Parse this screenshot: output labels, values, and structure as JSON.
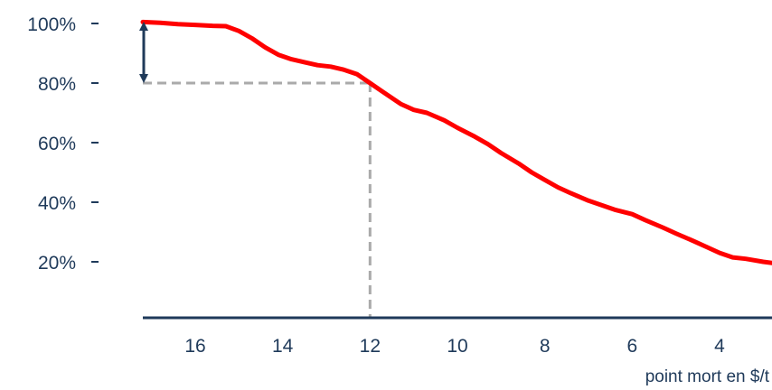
{
  "chart_data": {
    "type": "line",
    "title": "",
    "xlabel": "point mort en $/t",
    "ylabel": "",
    "x_reversed": true,
    "xlim": [
      17.2,
      2.8
    ],
    "ylim": [
      0,
      100
    ],
    "x_ticks": [
      16,
      14,
      12,
      10,
      8,
      6,
      4
    ],
    "y_ticks": [
      20,
      40,
      60,
      80,
      100
    ],
    "y_tick_labels": [
      "20%",
      "40%",
      "60%",
      "80%",
      "100%"
    ],
    "grid": false,
    "legend": "none",
    "series": [
      {
        "color": "#ff0000",
        "x": [
          17.2,
          16.8,
          16.4,
          16.0,
          15.6,
          15.3,
          15.0,
          14.7,
          14.4,
          14.1,
          13.8,
          13.5,
          13.2,
          12.9,
          12.6,
          12.3,
          12.0,
          11.7,
          11.3,
          11.0,
          10.7,
          10.3,
          10.0,
          9.6,
          9.3,
          9.0,
          8.6,
          8.3,
          8.0,
          7.7,
          7.4,
          7.0,
          6.7,
          6.4,
          6.0,
          5.7,
          5.3,
          5.0,
          4.6,
          4.3,
          4.0,
          3.7,
          3.4,
          3.0,
          2.8
        ],
        "y": [
          100.5,
          100.2,
          99.8,
          99.5,
          99.2,
          99.1,
          97.5,
          95.0,
          92.0,
          89.5,
          88.0,
          87.0,
          86.0,
          85.5,
          84.5,
          83.0,
          80.0,
          77.0,
          73.0,
          71.0,
          70.0,
          67.5,
          65.0,
          62.0,
          59.5,
          56.5,
          53.0,
          50.0,
          47.5,
          45.0,
          43.0,
          40.5,
          39.0,
          37.5,
          36.0,
          34.0,
          31.5,
          29.5,
          27.0,
          25.0,
          23.0,
          21.5,
          21.0,
          20.0,
          19.6
        ]
      }
    ],
    "reference": {
      "x": 12,
      "y": 80,
      "color": "#aaaaaa",
      "style": "dashed"
    },
    "annotation": {
      "type": "double-arrow",
      "x": 17.2,
      "from": 80,
      "to": 100,
      "color": "#1f3a5a"
    },
    "axis_color": "#1f3a5a"
  }
}
